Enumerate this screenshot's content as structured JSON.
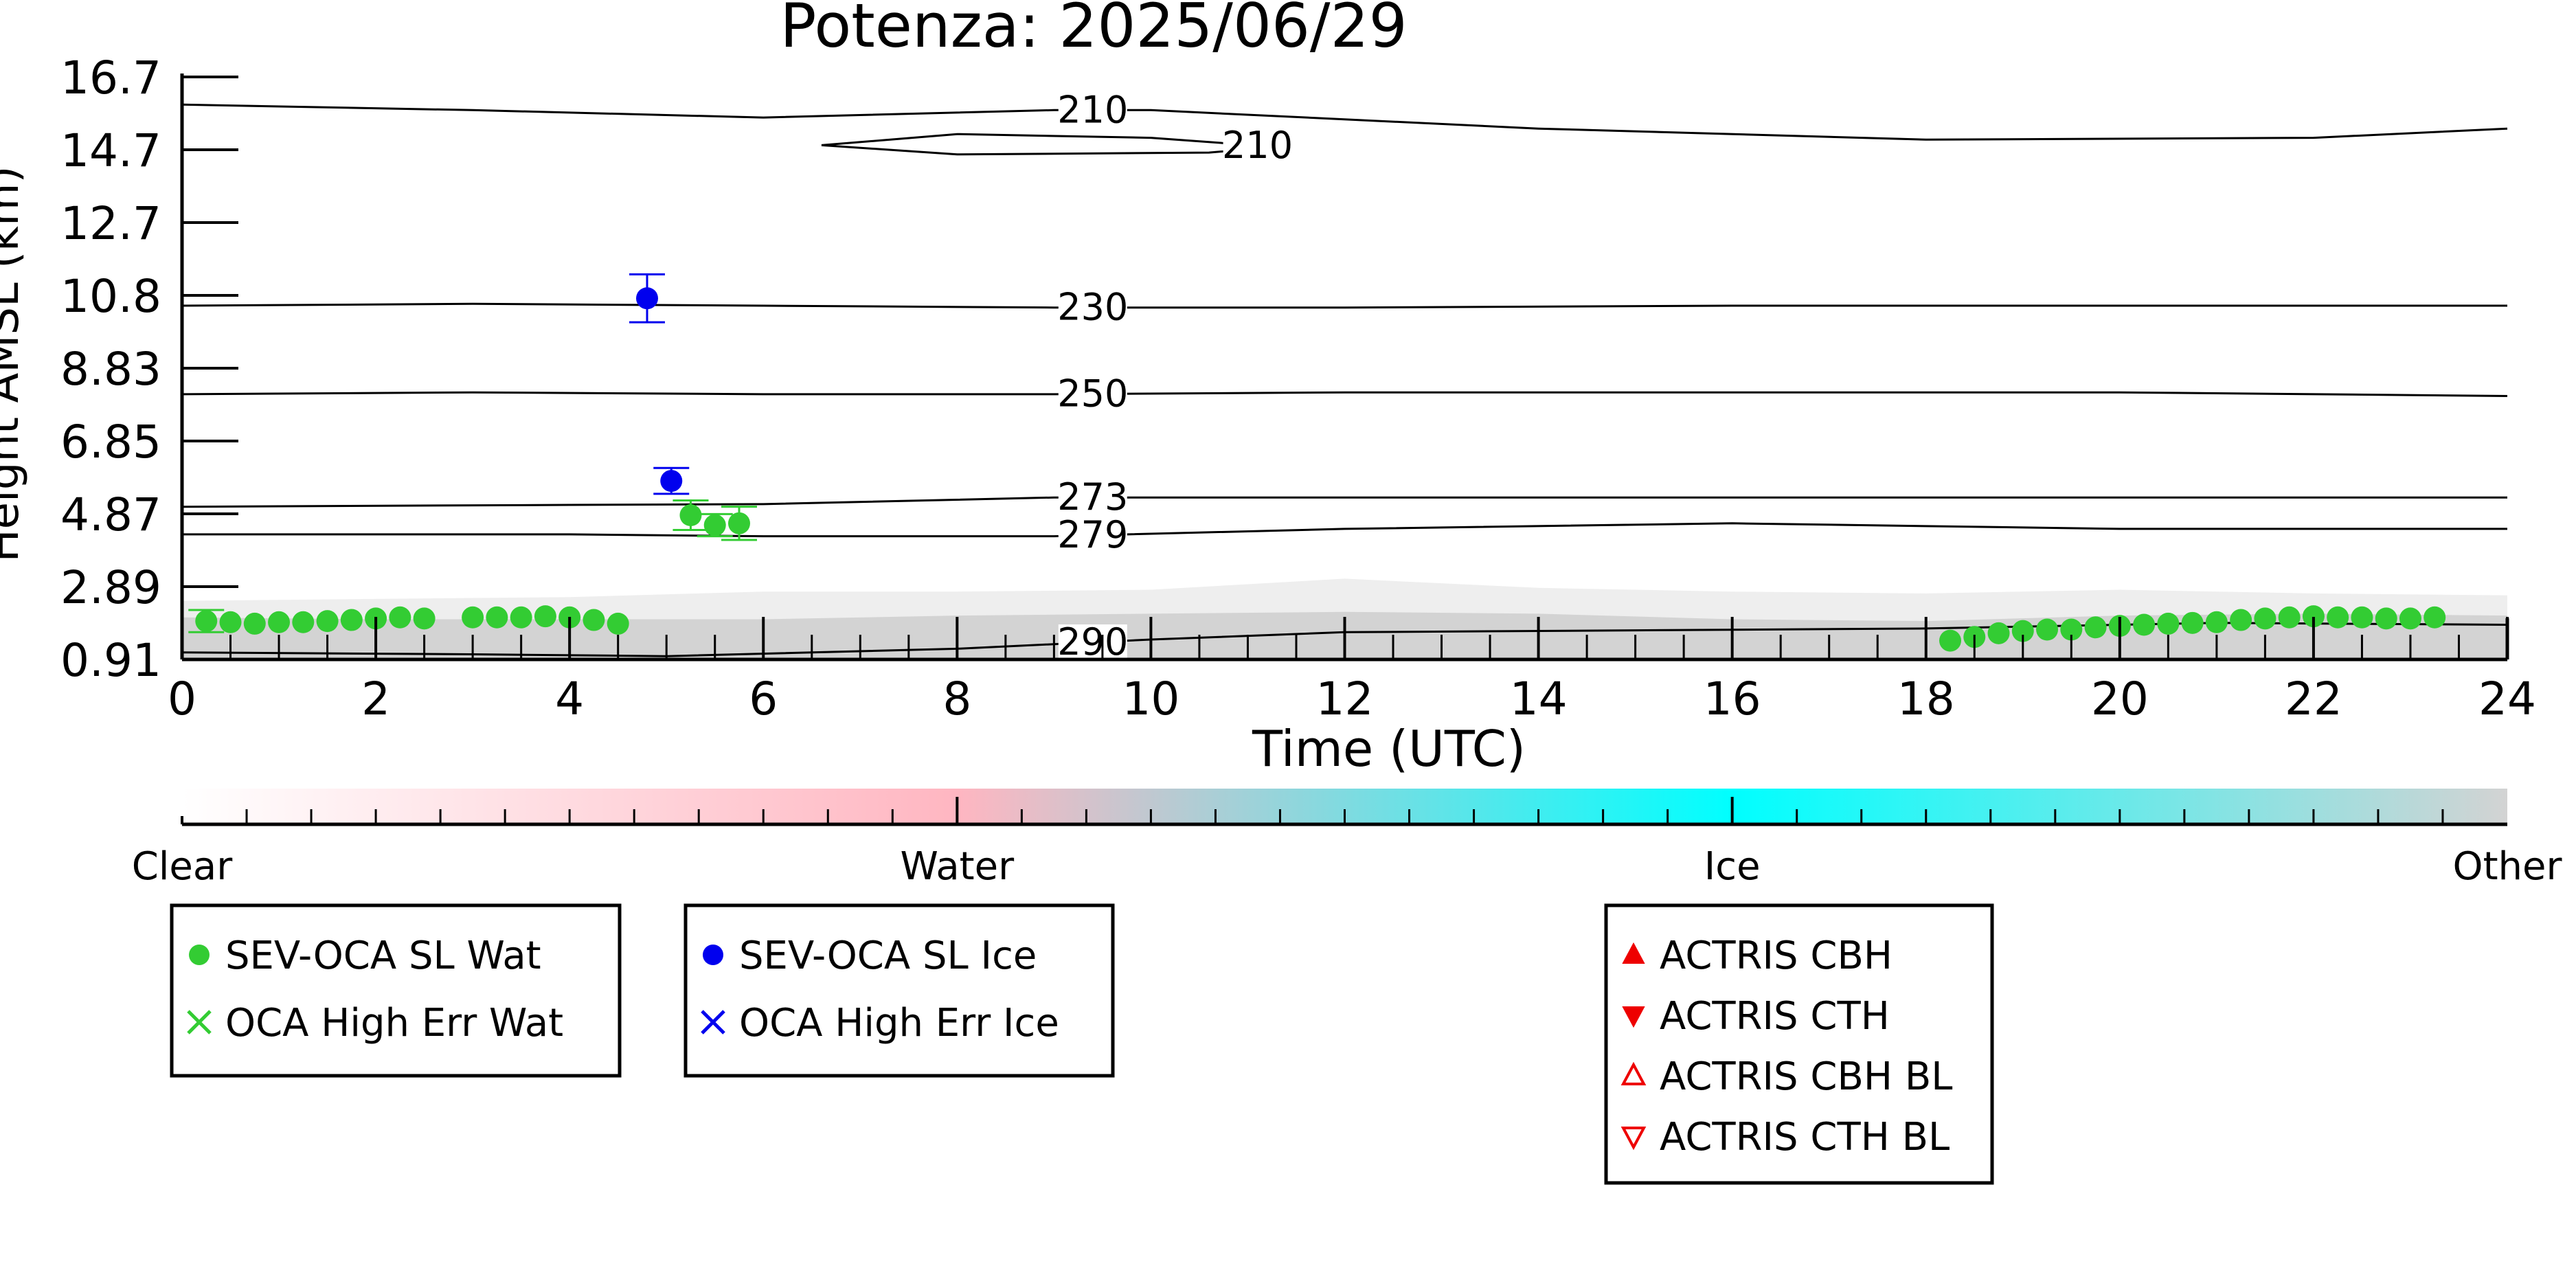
{
  "chart_data": {
    "type": "scatter",
    "title": "Potenza: 2025/06/29",
    "xlabel": "Time (UTC)",
    "ylabel": "Height AMSL (km)",
    "xlim": [
      0,
      24
    ],
    "ylim": [
      0.91,
      16.7
    ],
    "x_ticks": [
      0,
      2,
      4,
      6,
      8,
      10,
      12,
      14,
      16,
      18,
      20,
      22,
      24
    ],
    "y_ticks": [
      "0.91",
      "2.89",
      "4.87",
      "6.85",
      "8.83",
      "10.8",
      "12.7",
      "14.7",
      "16.7"
    ],
    "grid": false,
    "series": [
      {
        "name": "SEV-OCA SL Wat",
        "color": "#33cc33",
        "marker": "circle",
        "points": [
          {
            "x": 0.25,
            "y": 1.95,
            "err": 0.3
          },
          {
            "x": 0.5,
            "y": 1.92
          },
          {
            "x": 0.75,
            "y": 1.88
          },
          {
            "x": 1.0,
            "y": 1.92
          },
          {
            "x": 1.25,
            "y": 1.92
          },
          {
            "x": 1.5,
            "y": 1.95
          },
          {
            "x": 1.75,
            "y": 1.98
          },
          {
            "x": 2.0,
            "y": 2.02
          },
          {
            "x": 2.25,
            "y": 2.05
          },
          {
            "x": 2.5,
            "y": 2.02
          },
          {
            "x": 3.0,
            "y": 2.05
          },
          {
            "x": 3.25,
            "y": 2.05
          },
          {
            "x": 3.5,
            "y": 2.05
          },
          {
            "x": 3.75,
            "y": 2.08
          },
          {
            "x": 4.0,
            "y": 2.05
          },
          {
            "x": 4.25,
            "y": 1.98
          },
          {
            "x": 4.5,
            "y": 1.88
          },
          {
            "x": 5.25,
            "y": 4.82,
            "err": 0.4
          },
          {
            "x": 5.5,
            "y": 4.55,
            "err": 0.3
          },
          {
            "x": 5.75,
            "y": 4.6,
            "err": 0.45
          },
          {
            "x": 18.25,
            "y": 1.42
          },
          {
            "x": 18.5,
            "y": 1.52
          },
          {
            "x": 18.75,
            "y": 1.62
          },
          {
            "x": 19.0,
            "y": 1.68
          },
          {
            "x": 19.25,
            "y": 1.72
          },
          {
            "x": 19.5,
            "y": 1.72
          },
          {
            "x": 19.75,
            "y": 1.78
          },
          {
            "x": 20.0,
            "y": 1.82
          },
          {
            "x": 20.25,
            "y": 1.85
          },
          {
            "x": 20.5,
            "y": 1.88
          },
          {
            "x": 20.75,
            "y": 1.9
          },
          {
            "x": 21.0,
            "y": 1.92
          },
          {
            "x": 21.25,
            "y": 1.98
          },
          {
            "x": 21.5,
            "y": 2.02
          },
          {
            "x": 21.75,
            "y": 2.05
          },
          {
            "x": 22.0,
            "y": 2.08
          },
          {
            "x": 22.25,
            "y": 2.05
          },
          {
            "x": 22.5,
            "y": 2.05
          },
          {
            "x": 22.75,
            "y": 2.02
          },
          {
            "x": 23.0,
            "y": 2.02
          },
          {
            "x": 23.25,
            "y": 2.05
          }
        ]
      },
      {
        "name": "SEV-OCA SL Ice",
        "color": "#0000ee",
        "marker": "circle",
        "points": [
          {
            "x": 4.8,
            "y": 10.7,
            "err": 0.65
          },
          {
            "x": 5.05,
            "y": 5.75,
            "err": 0.35
          }
        ]
      }
    ],
    "contours": [
      {
        "label": "210",
        "label_x": 9.4,
        "points": [
          [
            0,
            15.95
          ],
          [
            3,
            15.8
          ],
          [
            6,
            15.6
          ],
          [
            9,
            15.8
          ],
          [
            10,
            15.8
          ],
          [
            14,
            15.3
          ],
          [
            18,
            15.0
          ],
          [
            22,
            15.05
          ],
          [
            24,
            15.3
          ]
        ]
      },
      {
        "label": "210",
        "label_x": 11.1,
        "closed": true,
        "points": [
          [
            6.6,
            14.85
          ],
          [
            8,
            15.15
          ],
          [
            10,
            15.05
          ],
          [
            11.3,
            14.8
          ],
          [
            10.6,
            14.65
          ],
          [
            8,
            14.6
          ],
          [
            6.6,
            14.85
          ]
        ]
      },
      {
        "label": "230",
        "label_x": 9.4,
        "points": [
          [
            0,
            10.5
          ],
          [
            3,
            10.55
          ],
          [
            6,
            10.5
          ],
          [
            9,
            10.45
          ],
          [
            12,
            10.45
          ],
          [
            16,
            10.5
          ],
          [
            20,
            10.5
          ],
          [
            24,
            10.5
          ]
        ]
      },
      {
        "label": "250",
        "label_x": 9.4,
        "points": [
          [
            0,
            8.1
          ],
          [
            3,
            8.15
          ],
          [
            6,
            8.1
          ],
          [
            9,
            8.1
          ],
          [
            12,
            8.15
          ],
          [
            16,
            8.15
          ],
          [
            20,
            8.15
          ],
          [
            24,
            8.05
          ]
        ]
      },
      {
        "label": "273",
        "label_x": 9.4,
        "points": [
          [
            0,
            5.05
          ],
          [
            4,
            5.1
          ],
          [
            6,
            5.12
          ],
          [
            9,
            5.3
          ],
          [
            12,
            5.3
          ],
          [
            16,
            5.3
          ],
          [
            20,
            5.3
          ],
          [
            24,
            5.3
          ]
        ]
      },
      {
        "label": "279",
        "label_x": 9.4,
        "points": [
          [
            0,
            4.3
          ],
          [
            4,
            4.3
          ],
          [
            6,
            4.25
          ],
          [
            9,
            4.25
          ],
          [
            12,
            4.45
          ],
          [
            16,
            4.6
          ],
          [
            20,
            4.45
          ],
          [
            24,
            4.45
          ]
        ]
      },
      {
        "label": "290",
        "label_x": 9.4,
        "points": [
          [
            0,
            1.1
          ],
          [
            3,
            1.05
          ],
          [
            5,
            1.0
          ],
          [
            8,
            1.2
          ],
          [
            10,
            1.45
          ],
          [
            12,
            1.65
          ],
          [
            15,
            1.7
          ],
          [
            18,
            1.75
          ],
          [
            21,
            1.9
          ],
          [
            24,
            1.85
          ]
        ]
      }
    ]
  },
  "colorbar": {
    "ticks": [
      "Clear",
      "Water",
      "Ice",
      "Other"
    ],
    "colors": [
      "#ffffff",
      "#ffb6c1",
      "#00ffff",
      "#d3d3d3"
    ]
  },
  "legends": [
    {
      "items": [
        {
          "label": "SEV-OCA SL Wat",
          "symbol": "circle",
          "color": "#33cc33"
        },
        {
          "label": "OCA High Err Wat",
          "symbol": "cross",
          "color": "#33cc33"
        }
      ]
    },
    {
      "items": [
        {
          "label": "SEV-OCA SL Ice",
          "symbol": "circle",
          "color": "#0000ee"
        },
        {
          "label": "OCA High Err Ice",
          "symbol": "cross",
          "color": "#0000ee"
        }
      ]
    },
    {
      "items": [
        {
          "label": "ACTRIS CBH",
          "symbol": "triangle-up",
          "color": "#ee0000"
        },
        {
          "label": "ACTRIS CTH",
          "symbol": "triangle-down",
          "color": "#ee0000"
        },
        {
          "label": "ACTRIS CBH BL",
          "symbol": "triangle-up-open",
          "color": "#ee0000"
        },
        {
          "label": "ACTRIS CTH BL",
          "symbol": "triangle-down-open",
          "color": "#ee0000"
        }
      ]
    }
  ]
}
